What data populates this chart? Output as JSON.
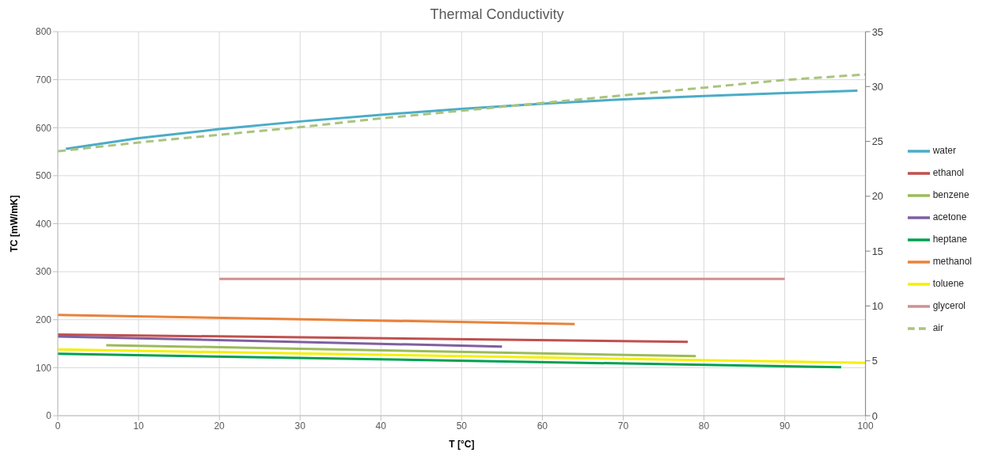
{
  "chart_data": {
    "type": "line",
    "title": "Thermal Conductivity",
    "xlabel": "T [°C]",
    "ylabel": "TC [mW/mK]",
    "xlim": [
      0,
      100
    ],
    "xticks": [
      0,
      10,
      20,
      30,
      40,
      50,
      60,
      70,
      80,
      90,
      100
    ],
    "ylim": [
      0,
      800
    ],
    "yticks": [
      0,
      100,
      200,
      300,
      400,
      500,
      600,
      700,
      800
    ],
    "y2lim": [
      0,
      35
    ],
    "y2ticks": [
      0,
      5,
      10,
      15,
      20,
      25,
      30,
      35
    ],
    "grid": true,
    "legend": "right",
    "marker": "none",
    "series": [
      {
        "name": "water",
        "color": "#4bacc6",
        "x": [
          1,
          10,
          20,
          30,
          40,
          50,
          60,
          70,
          80,
          90,
          99
        ],
        "values": [
          556,
          578,
          597,
          613,
          627,
          639,
          650,
          659,
          666,
          672,
          677
        ]
      },
      {
        "name": "ethanol",
        "color": "#c0504d",
        "x": [
          0,
          78
        ],
        "values": [
          169,
          154
        ]
      },
      {
        "name": "benzene",
        "color": "#9bbb59",
        "x": [
          6,
          79
        ],
        "values": [
          147,
          124
        ]
      },
      {
        "name": "acetone",
        "color": "#7f5fa0",
        "x": [
          0,
          55
        ],
        "values": [
          165,
          144
        ]
      },
      {
        "name": "heptane",
        "color": "#00a050",
        "x": [
          0,
          97
        ],
        "values": [
          129,
          101
        ]
      },
      {
        "name": "methanol",
        "color": "#e8823a",
        "x": [
          0,
          64
        ],
        "values": [
          210,
          191
        ]
      },
      {
        "name": "toluene",
        "color": "#f5f000",
        "x": [
          0,
          100
        ],
        "values": [
          138,
          110
        ]
      },
      {
        "name": "glycerol",
        "color": "#d09090",
        "x": [
          20,
          90
        ],
        "values": [
          285,
          285
        ]
      },
      {
        "name": "air",
        "color": "#a9c47f",
        "axis": "y2",
        "line_style": "dashed",
        "x": [
          0,
          10,
          20,
          30,
          40,
          50,
          60,
          70,
          80,
          90,
          100
        ],
        "values": [
          24.1,
          24.9,
          25.6,
          26.3,
          27.1,
          27.8,
          28.5,
          29.2,
          29.9,
          30.6,
          31.1
        ]
      }
    ]
  }
}
